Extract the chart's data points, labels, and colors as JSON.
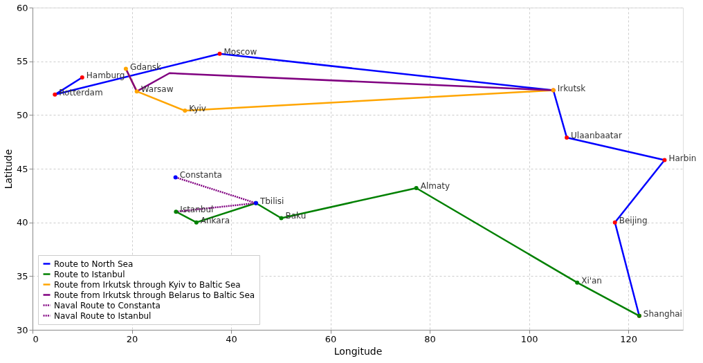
{
  "chart_data": {
    "type": "line",
    "xlabel": "Longitude",
    "ylabel": "Latitude",
    "xlim": [
      0,
      131
    ],
    "xticks": [
      0,
      20,
      40,
      60,
      80,
      100,
      120
    ],
    "ylim": [
      30,
      60
    ],
    "yticks": [
      30,
      35,
      40,
      45,
      50,
      55,
      60
    ],
    "grid": true,
    "legend": "bottom left",
    "line_style": "solid",
    "series": [
      {
        "name": "Route to North Sea",
        "color": "#0000ff",
        "marker": "circle",
        "colors": [
          "#ff0000",
          "#ff0000",
          "#ff0000",
          "#ff0000",
          "#ff0000",
          "#ff0000",
          "#ff0000",
          "#ff0000"
        ],
        "x": [
          10.0,
          4.5,
          37.7,
          104.9,
          107.6,
          127.3,
          117.3,
          122.2
        ],
        "values": [
          53.5,
          51.9,
          55.7,
          52.3,
          47.9,
          45.8,
          40.0,
          31.3
        ]
      },
      {
        "name": "Route to Istanbul",
        "color": "#008000",
        "marker": "circle",
        "x": [
          28.9,
          33.0,
          45.0,
          50.1,
          77.3,
          109.7,
          122.2
        ],
        "values": [
          41.0,
          40.0,
          41.8,
          40.4,
          43.2,
          34.4,
          31.3
        ]
      },
      {
        "name": "Route from Irkutsk through Kyiv to Baltic Sea",
        "color": "#ffa500",
        "marker": "circle",
        "x": [
          104.9,
          30.7,
          21.0,
          18.8
        ],
        "values": [
          52.3,
          50.4,
          52.2,
          54.3
        ]
      },
      {
        "name": "Route from Irkutsk through Belarus to Baltic Sea",
        "color": "#800080",
        "marker": "none",
        "x": [
          104.9,
          27.6,
          21.0,
          18.8
        ],
        "values": [
          52.3,
          53.9,
          52.2,
          54.3
        ]
      },
      {
        "name": "Naval Route to Constanta",
        "color": "#800080",
        "marker": "circle",
        "line_style": "dotted",
        "colors": [
          "#0000ff",
          "#0000ff"
        ],
        "x": [
          28.8,
          45.0
        ],
        "values": [
          44.2,
          41.8
        ]
      },
      {
        "name": "Naval Route to Istanbul",
        "color": "#800080",
        "marker": "none",
        "line_style": "dotted",
        "x": [
          45.0,
          28.9
        ],
        "values": [
          41.8,
          41.0
        ]
      }
    ],
    "annotations": [
      {
        "text": "Rotterdam",
        "x": 4.5,
        "y": 51.9
      },
      {
        "text": "Hamburg",
        "x": 10.0,
        "y": 53.5
      },
      {
        "text": "Moscow",
        "x": 37.7,
        "y": 55.7
      },
      {
        "text": "Irkutsk",
        "x": 104.9,
        "y": 52.3
      },
      {
        "text": "Ulaanbaatar",
        "x": 107.6,
        "y": 47.9
      },
      {
        "text": "Harbin",
        "x": 127.3,
        "y": 45.8
      },
      {
        "text": "Beijing",
        "x": 117.3,
        "y": 40.0
      },
      {
        "text": "Shanghai",
        "x": 122.2,
        "y": 31.3
      },
      {
        "text": "Istanbul",
        "x": 28.9,
        "y": 41.0
      },
      {
        "text": "Ankara",
        "x": 33.0,
        "y": 40.0
      },
      {
        "text": "Tbilisi",
        "x": 45.0,
        "y": 41.8
      },
      {
        "text": "Baku",
        "x": 50.1,
        "y": 40.4
      },
      {
        "text": "Almaty",
        "x": 77.3,
        "y": 43.2
      },
      {
        "text": "Xi'an",
        "x": 109.7,
        "y": 34.4
      },
      {
        "text": "Kyiv",
        "x": 30.7,
        "y": 50.4
      },
      {
        "text": "Warsaw",
        "x": 21.0,
        "y": 52.2
      },
      {
        "text": "Gdansk",
        "x": 18.8,
        "y": 54.3
      },
      {
        "text": "Constanta",
        "x": 28.8,
        "y": 44.2
      }
    ]
  }
}
